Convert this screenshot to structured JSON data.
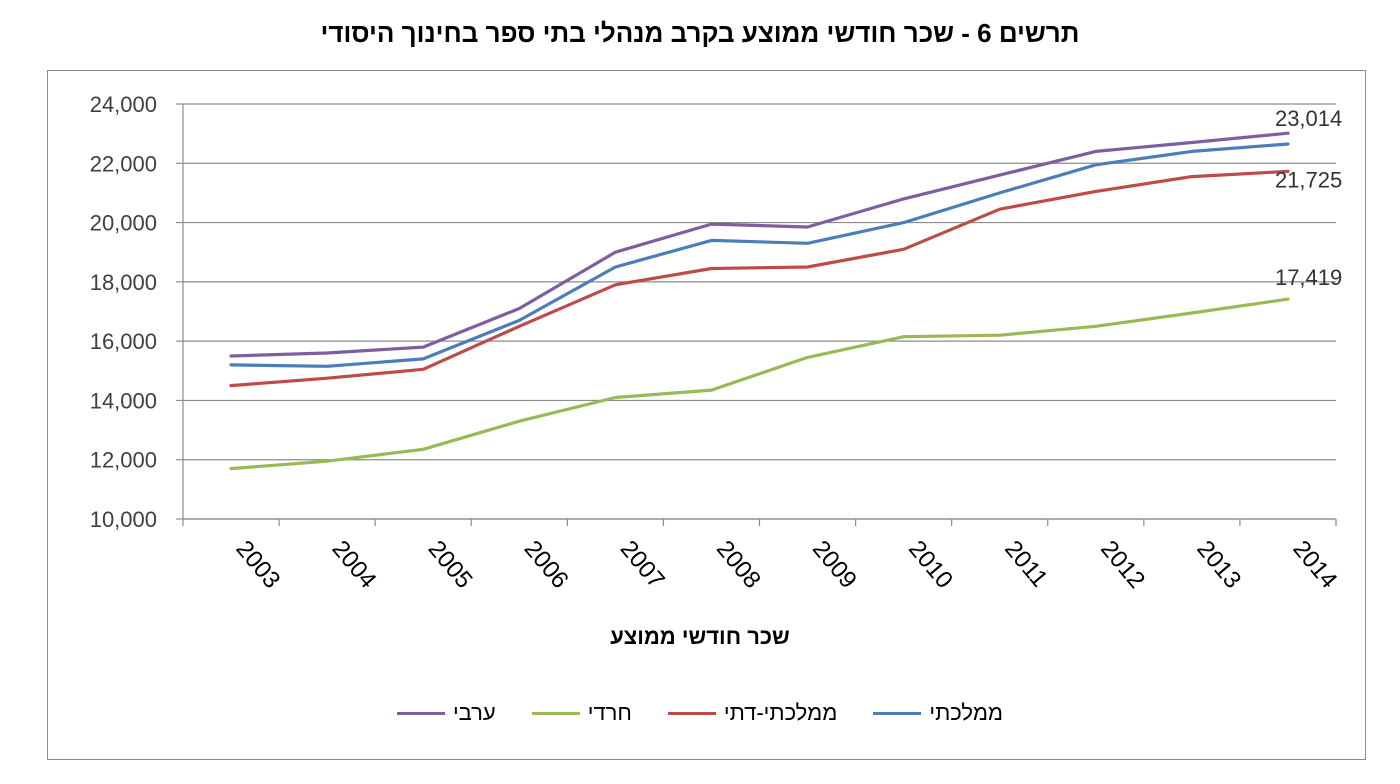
{
  "title": "תרשים 6 - שכר חודשי ממוצע בקרב מנהלי בתי ספר בחינוך היסודי",
  "chart_data": {
    "type": "line",
    "title": "תרשים 6 - שכר חודשי ממוצע בקרב מנהלי בתי ספר בחינוך היסודי",
    "xlabel": "שכר חודשי ממוצע",
    "ylabel": "",
    "ylim": [
      10000,
      24000
    ],
    "yticks": [
      "10,000",
      "12,000",
      "14,000",
      "16,000",
      "18,000",
      "20,000",
      "22,000",
      "24,000"
    ],
    "categories": [
      "2003",
      "2004",
      "2005",
      "2006",
      "2007",
      "2008",
      "2009",
      "2010",
      "2011",
      "2012",
      "2013",
      "2014"
    ],
    "grid": true,
    "legend_position": "bottom",
    "series": [
      {
        "name": "ממלכתי",
        "color": "#4a7ebb",
        "values": [
          15200,
          15150,
          15400,
          16700,
          18500,
          19400,
          19300,
          20000,
          21000,
          21950,
          22400,
          22650
        ]
      },
      {
        "name": "ממלכתי-דתי",
        "color": "#be4b48",
        "values": [
          14500,
          14750,
          15050,
          16500,
          17900,
          18450,
          18500,
          19100,
          20450,
          21050,
          21550,
          21725
        ]
      },
      {
        "name": "חרדי",
        "color": "#98b954",
        "values": [
          11700,
          11950,
          12350,
          13300,
          14100,
          14350,
          15450,
          16150,
          16200,
          16500,
          16950,
          17419
        ]
      },
      {
        "name": "ערבי",
        "color": "#7d5fa0",
        "values": [
          15500,
          15600,
          15800,
          17100,
          19000,
          19950,
          19850,
          20800,
          21600,
          22400,
          22700,
          23014
        ]
      }
    ],
    "end_labels": [
      {
        "series": "ערבי",
        "text": "23,014"
      },
      {
        "series": "ממלכתי-דתי",
        "text": "21,725"
      },
      {
        "series": "חרדי",
        "text": "17,419"
      }
    ]
  }
}
